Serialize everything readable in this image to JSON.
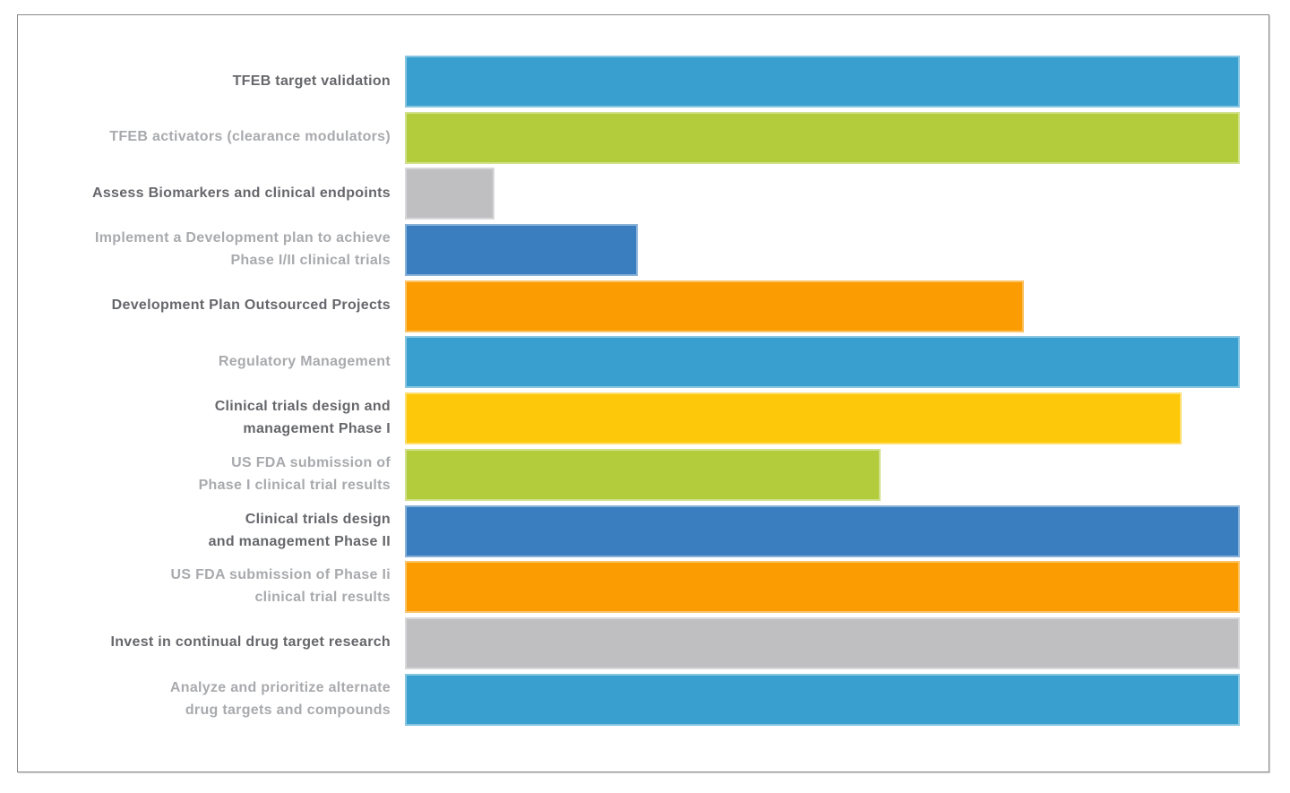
{
  "frame": {
    "border_color": "#8a8a8a",
    "background": "#ffffff"
  },
  "chart_data": {
    "type": "bar",
    "orientation": "horizontal",
    "title": "",
    "xlabel": "",
    "ylabel": "",
    "legend": "none",
    "axes_visible": false,
    "gridlines": false,
    "value_scale": "percent of longest bar (no numeric axis shown; values estimated from pixel lengths)",
    "xlim": [
      0,
      100
    ],
    "categories": [
      "TFEB target validation",
      "TFEB activators (clearance modulators)",
      "Assess Biomarkers and clinical endpoints",
      "Implement a Development plan to achieve\nPhase I/II clinical trials",
      "Development Plan Outsourced Projects",
      "Regulatory Management",
      "Clinical trials design and\nmanagement Phase I",
      "US FDA submission of\nPhase I clinical trial results",
      "Clinical trials design\nand management Phase II",
      "US FDA submission of Phase Ii\nclinical trial results",
      "Invest in continual drug target research",
      "Analyze and prioritize alternate\ndrug targets and compounds"
    ],
    "values": [
      100,
      100,
      10.7,
      27.9,
      74.1,
      100,
      93,
      57,
      100,
      100,
      100,
      100
    ],
    "bars": [
      {
        "label": "TFEB target validation",
        "value": 100,
        "color": "#399fce",
        "tone": "dark"
      },
      {
        "label": "TFEB activators (clearance modulators)",
        "value": 100,
        "color": "#b2cc3c",
        "tone": "light"
      },
      {
        "label": "Assess Biomarkers and clinical endpoints",
        "value": 10.7,
        "color": "#bfbfc1",
        "tone": "dark"
      },
      {
        "label": "Implement a Development plan to achieve\nPhase I/II clinical trials",
        "value": 27.9,
        "color": "#3a7ebf",
        "tone": "light"
      },
      {
        "label": "Development Plan Outsourced Projects",
        "value": 74.1,
        "color": "#fa9c02",
        "tone": "dark"
      },
      {
        "label": "Regulatory Management",
        "value": 100,
        "color": "#399fce",
        "tone": "light"
      },
      {
        "label": "Clinical trials design and\nmanagement Phase I",
        "value": 93,
        "color": "#fec80a",
        "tone": "dark"
      },
      {
        "label": "US FDA submission of\nPhase I clinical trial results",
        "value": 57,
        "color": "#b2cc3c",
        "tone": "light"
      },
      {
        "label": "Clinical trials design\nand management Phase II",
        "value": 100,
        "color": "#3a7ebf",
        "tone": "dark"
      },
      {
        "label": "US FDA submission of Phase Ii\nclinical trial results",
        "value": 100,
        "color": "#fa9c02",
        "tone": "light"
      },
      {
        "label": "Invest in continual drug target research",
        "value": 100,
        "color": "#bfbfc1",
        "tone": "dark"
      },
      {
        "label": "Analyze and prioritize alternate\ndrug targets and compounds",
        "value": 100,
        "color": "#399fce",
        "tone": "light"
      }
    ],
    "palette": {
      "light_blue": "#399fce",
      "lime_green": "#b2cc3c",
      "gray": "#bfbfc1",
      "dark_blue": "#3a7ebf",
      "orange": "#fa9c02",
      "yellow": "#fec80a"
    },
    "label_colors": {
      "dark": "#66676b",
      "light": "#a8aaad"
    }
  }
}
